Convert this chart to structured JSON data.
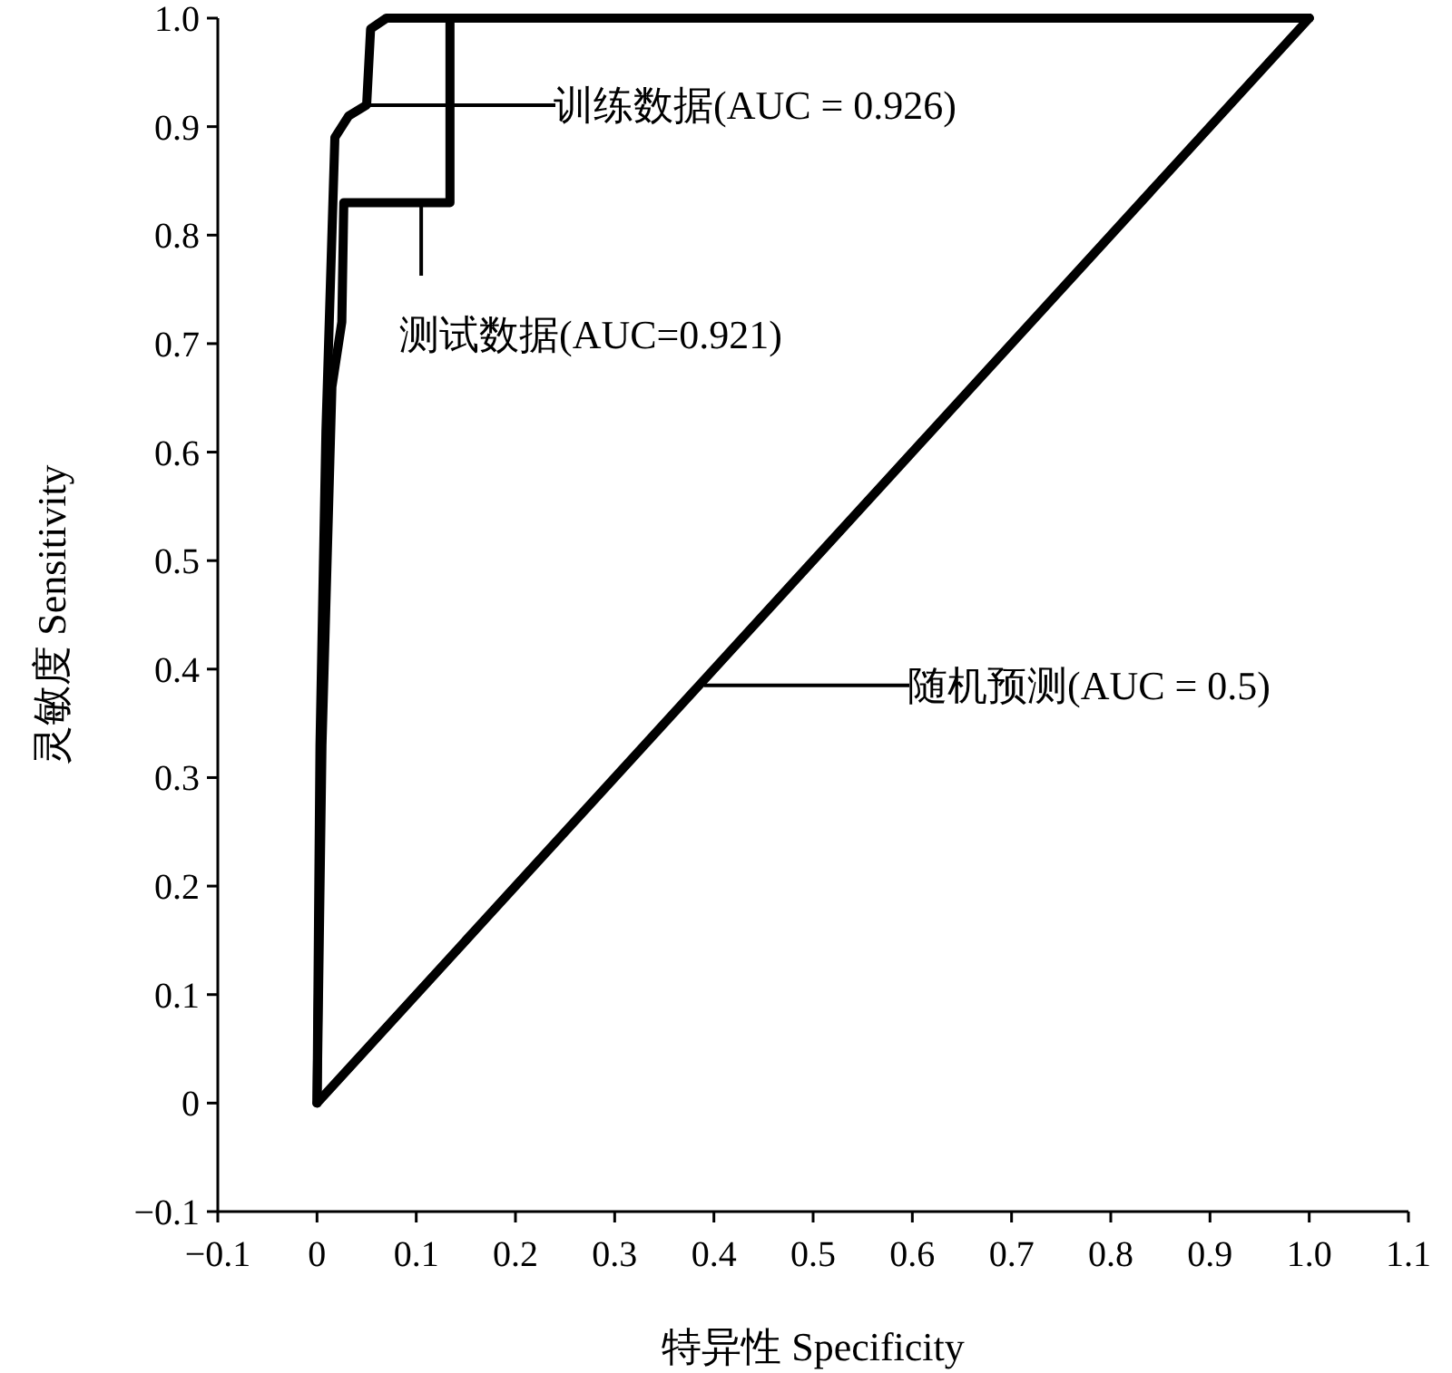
{
  "chart_data": {
    "type": "line",
    "xlabel": "特异性 Specificity",
    "ylabel": "灵敏度 Sensitivity",
    "xlim": [
      -0.1,
      1.1
    ],
    "ylim": [
      -0.1,
      1.0
    ],
    "xticks": [
      {
        "value": -0.1,
        "label": "−0.1"
      },
      0,
      0.1,
      0.2,
      0.3,
      0.4,
      0.5,
      0.6,
      0.7,
      0.8,
      0.9,
      {
        "value": 1,
        "label": "1.0"
      },
      1.1
    ],
    "yticks": [
      {
        "value": -0.1,
        "label": "−0.1"
      },
      0,
      0.1,
      0.2,
      0.3,
      0.4,
      0.5,
      0.6,
      0.7,
      0.8,
      0.9,
      {
        "value": 1,
        "label": "1.0"
      }
    ],
    "series": [
      {
        "color": "#000000",
        "x": [
          0,
          0.003,
          0.009,
          0.018,
          0.032,
          0.05,
          0.054,
          0.07,
          1
        ],
        "values": [
          0,
          0.33,
          0.62,
          0.89,
          0.91,
          0.92,
          0.99,
          1,
          1
        ]
      },
      {
        "color": "#000000",
        "x": [
          0,
          0.005,
          0.015,
          0.025,
          0.027,
          0.134,
          0.134,
          1
        ],
        "values": [
          0,
          0.33,
          0.66,
          0.72,
          0.83,
          0.83,
          1,
          1
        ]
      },
      {
        "color": "#000000",
        "x": [
          0,
          1
        ],
        "values": [
          0,
          1
        ]
      }
    ],
    "annotations": [
      "训练数据(AUC = 0.926)",
      {
        "text": "测试数据(AUC=0.921)",
        "x": 0.105,
        "y": 0.83
      },
      {
        "text": "随机预测(AUC = 0.5)",
        "x": 0.39,
        "y": 0.385
      }
    ],
    "grid": false,
    "marker": "none",
    "line_style": "solid"
  }
}
